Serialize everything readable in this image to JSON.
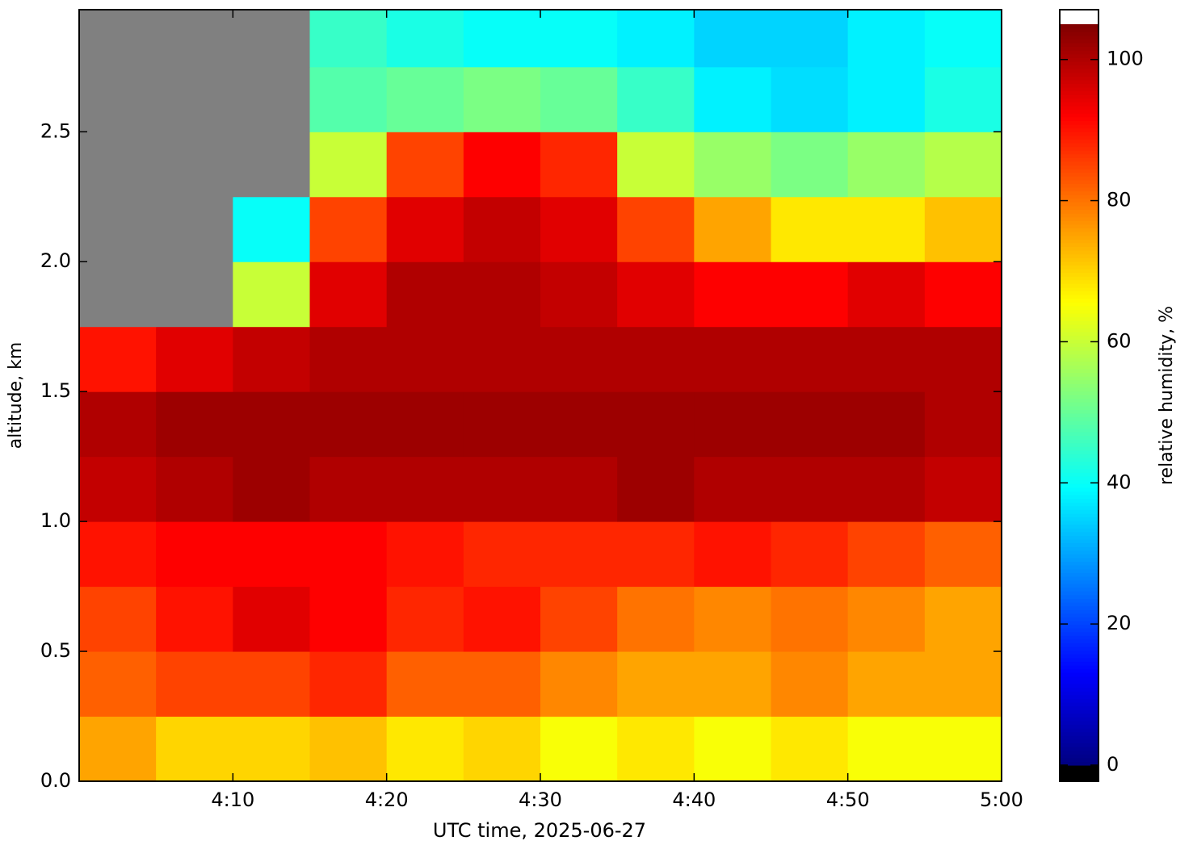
{
  "chart_data": {
    "type": "heatmap",
    "xlabel": "UTC time,  2025-06-27",
    "ylabel": "altitude, km",
    "colorbar_label": "relative humidity, %",
    "colormap": "jet",
    "missing_color": "#808080",
    "over_color": "#ffffff",
    "under_color": "#000000",
    "xbins": [
      "4:00",
      "4:05",
      "4:10",
      "4:15",
      "4:20",
      "4:25",
      "4:30",
      "4:35",
      "4:40",
      "4:45",
      "4:50",
      "4:55",
      "5:00"
    ],
    "ybins": [
      0,
      0.25,
      0.5,
      0.75,
      1,
      1.25,
      1.5,
      1.75,
      2,
      2.25,
      2.5,
      2.75,
      3
    ],
    "values": [
      [
        75,
        70,
        70,
        72,
        68,
        70,
        65,
        68,
        65,
        68,
        65,
        65
      ],
      [
        82,
        85,
        85,
        88,
        82,
        82,
        78,
        75,
        75,
        78,
        75,
        75
      ],
      [
        85,
        90,
        95,
        92,
        88,
        90,
        85,
        80,
        78,
        80,
        78,
        75
      ],
      [
        90,
        92,
        92,
        92,
        90,
        88,
        88,
        88,
        90,
        88,
        85,
        82
      ],
      [
        98,
        100,
        102,
        100,
        100,
        100,
        100,
        102,
        100,
        100,
        100,
        98
      ],
      [
        100,
        102,
        102,
        102,
        102,
        102,
        102,
        102,
        102,
        102,
        102,
        100
      ],
      [
        90,
        95,
        98,
        100,
        100,
        100,
        100,
        100,
        100,
        100,
        100,
        100
      ],
      [
        null,
        null,
        60,
        95,
        100,
        100,
        98,
        95,
        92,
        92,
        95,
        92
      ],
      [
        null,
        null,
        40,
        85,
        95,
        98,
        95,
        85,
        75,
        68,
        68,
        72
      ],
      [
        null,
        null,
        null,
        60,
        85,
        92,
        88,
        60,
        55,
        52,
        55,
        58
      ],
      [
        null,
        null,
        null,
        48,
        50,
        52,
        50,
        45,
        38,
        36,
        38,
        42
      ],
      [
        null,
        null,
        null,
        45,
        42,
        40,
        40,
        38,
        35,
        35,
        38,
        40
      ]
    ],
    "xlim": [
      "4:00",
      "5:00"
    ],
    "xticks": [
      "4:10",
      "4:20",
      "4:30",
      "4:40",
      "4:50",
      "5:00"
    ],
    "ylim": [
      0,
      2.97
    ],
    "yticks": [
      {
        "value": 0,
        "label": "0.0"
      },
      0.5,
      {
        "value": 1,
        "label": "1.0"
      },
      1.5,
      {
        "value": 2,
        "label": "2.0"
      },
      2.5
    ],
    "clim": [
      0,
      105
    ],
    "cticks": [
      0,
      20,
      40,
      60,
      80,
      100
    ]
  }
}
